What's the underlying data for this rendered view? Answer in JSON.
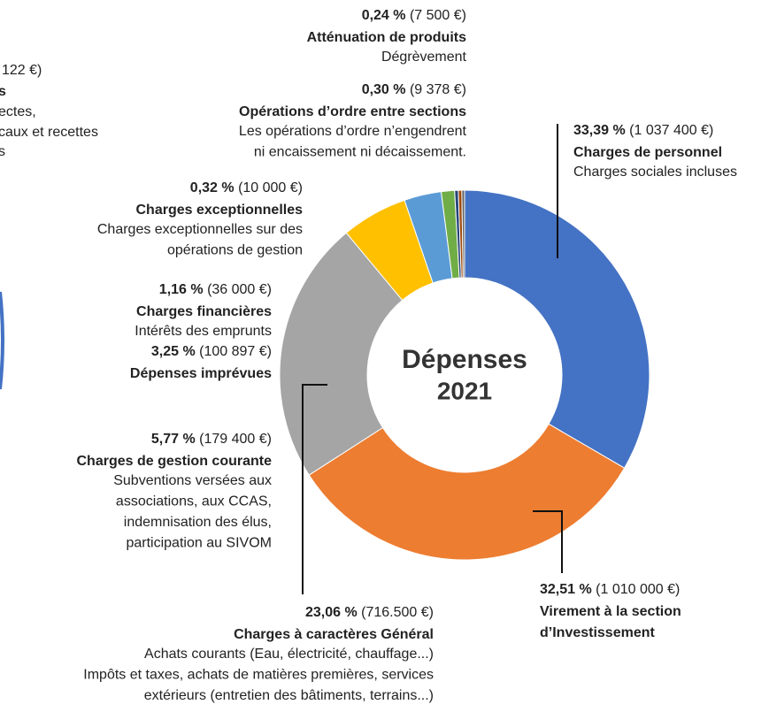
{
  "chart_data": {
    "type": "pie",
    "donut": true,
    "center_title": "Dépenses",
    "center_subtitle": "2021",
    "categories": [
      "Charges de personnel",
      "Virement à la section d’Investissement",
      "Charges à caractères Général",
      "Charges de gestion courante",
      "Dépenses imprévues",
      "Charges financières",
      "Charges exceptionnelles",
      "Opérations d’ordre entre sections",
      "Atténuation de produits"
    ],
    "values": [
      33.39,
      32.51,
      23.06,
      5.77,
      3.25,
      1.16,
      0.32,
      0.3,
      0.24
    ],
    "value_labels": [
      "33,39 %",
      "32,51 %",
      "23,06 %",
      "5,77 %",
      "3,25 %",
      "1,16 %",
      "0,32 %",
      "0,30 %",
      "0,24 %"
    ],
    "amount_labels": [
      "(1 037 400 €)",
      "(1 010 000 €)",
      "(716.500 €)",
      "(179 400 €)",
      "(100 897 €)",
      "(36 000 €)",
      "(10 000 €)",
      "(9 378 €)",
      "(7 500 €)"
    ],
    "name_lines": [
      [
        "Charges de personnel"
      ],
      [
        "Virement à la section",
        "d’Investissement"
      ],
      [
        "Charges à caractères Général"
      ],
      [
        "Charges de gestion courante"
      ],
      [
        "Dépenses imprévues"
      ],
      [
        "Charges financières"
      ],
      [
        "Charges exceptionnelles"
      ],
      [
        "Opérations d’ordre entre sections"
      ],
      [
        "Atténuation de produits"
      ]
    ],
    "descriptions": [
      [
        "Charges sociales incluses"
      ],
      [],
      [
        "Achats courants (Eau, électricité, chauffage...)",
        "Impôts et taxes, achats de matières premières, services",
        "extérieurs (entretien des bâtiments, terrains...)"
      ],
      [
        "Subventions versées aux",
        "associations, aux CCAS,",
        "indemnisation des élus,",
        "participation au SIVOM"
      ],
      [],
      [
        "Intérêts des emprunts"
      ],
      [
        "Charges exceptionnelles sur des",
        "opérations de gestion"
      ],
      [
        "Les opérations d’ordre n’engendrent",
        "ni encaissement ni décaissement."
      ],
      [
        "Dégrèvement"
      ]
    ],
    "colors": [
      "#4472c4",
      "#ed7d31",
      "#a5a5a5",
      "#ffc000",
      "#5b9bd5",
      "#70ad47",
      "#264478",
      "#9e480e",
      "#636363"
    ],
    "left_fragments": [
      "122 €)",
      "s",
      "ectes,",
      "caux et recettes",
      "s"
    ]
  }
}
